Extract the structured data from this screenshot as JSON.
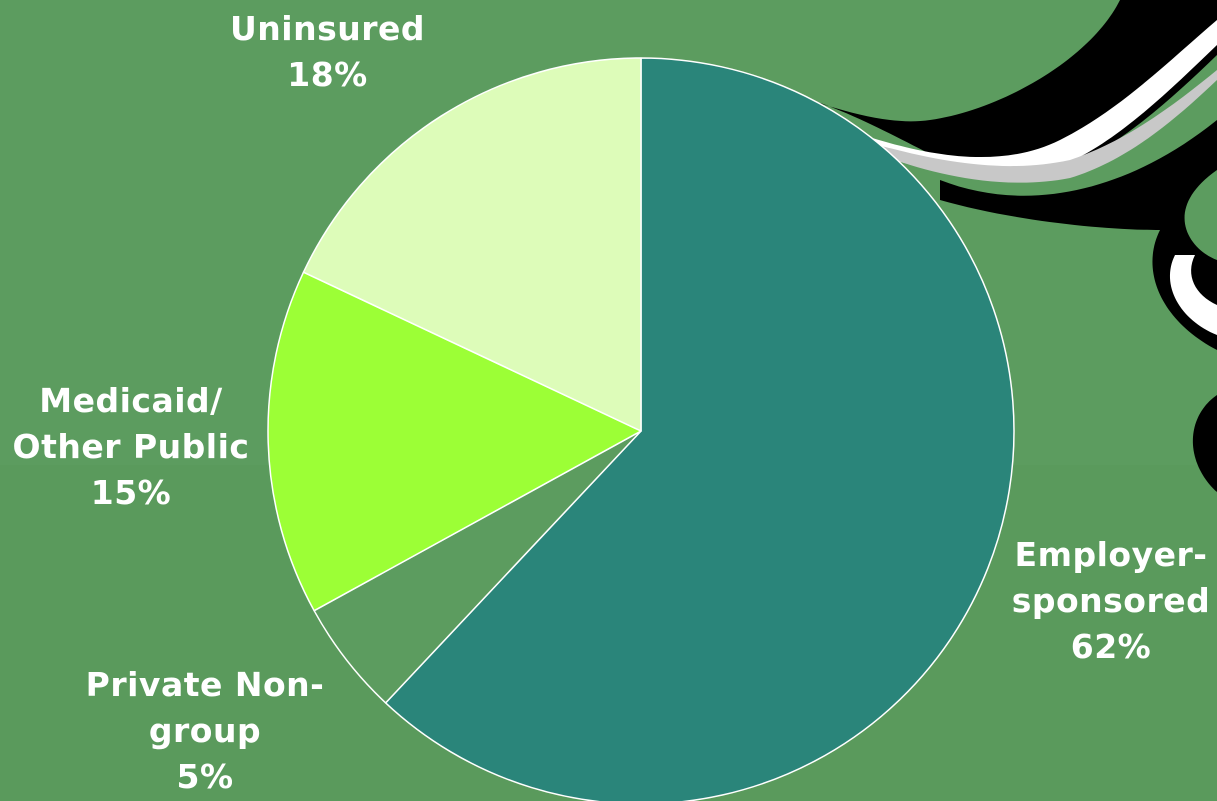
{
  "chart_data": {
    "type": "pie",
    "title": "",
    "slices": [
      {
        "name": "Employer-sponsored",
        "label_lines": [
          "Employer-",
          "sponsored"
        ],
        "value": 62,
        "value_label": "62%",
        "color": "#2a857a"
      },
      {
        "name": "Private Non-group",
        "label_lines": [
          "Private Non-",
          "group"
        ],
        "value": 5,
        "value_label": "5%",
        "color": "#5c9c5f"
      },
      {
        "name": "Medicaid/ Other Public",
        "label_lines": [
          "Medicaid/",
          "Other Public"
        ],
        "value": 15,
        "value_label": "15%",
        "color": "#9cff36"
      },
      {
        "name": "Uninsured",
        "label_lines": [
          "Uninsured"
        ],
        "value": 18,
        "value_label": "18%",
        "color": "#ddfcb9"
      }
    ],
    "start": "12 o'clock",
    "direction": "clockwise",
    "legend": "none"
  },
  "colors": {
    "background": "#5c9c5f",
    "slice_border": "#ffffff",
    "label_text": "#ffffff"
  }
}
